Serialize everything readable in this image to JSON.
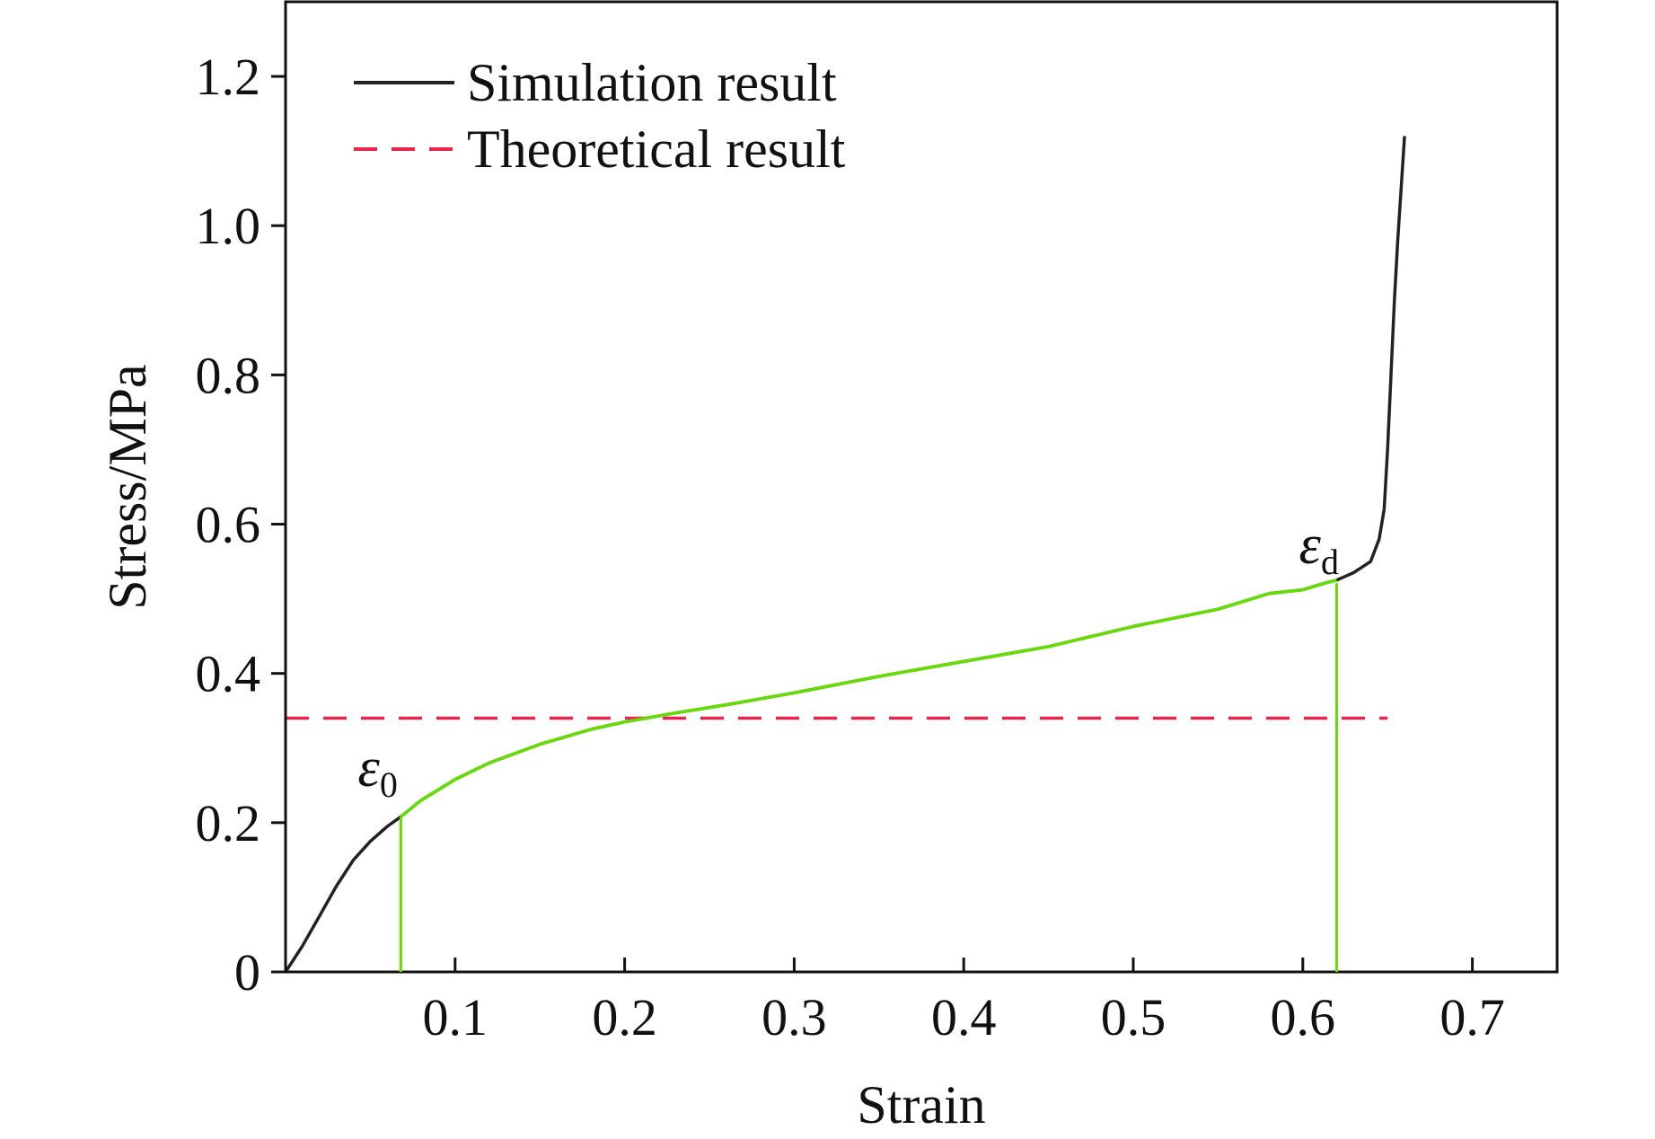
{
  "chart_data": {
    "type": "line",
    "xlabel": "Strain",
    "ylabel": "Stress/MPa",
    "xlim": [
      0,
      0.75
    ],
    "ylim": [
      0,
      1.3
    ],
    "xticks": [
      0.1,
      0.2,
      0.3,
      0.4,
      0.5,
      0.6,
      0.7
    ],
    "xtick_labels": [
      "0.1",
      "0.2",
      "0.3",
      "0.4",
      "0.5",
      "0.6",
      "0.7"
    ],
    "yticks": [
      0,
      0.2,
      0.4,
      0.6,
      0.8,
      1.0,
      1.2
    ],
    "ytick_labels": [
      "0",
      "0.2",
      "0.4",
      "0.6",
      "0.8",
      "1.0",
      "1.2"
    ],
    "legend_position": "top-left",
    "series": [
      {
        "name": "Simulation result",
        "color": "#222222",
        "style": "solid",
        "x": [
          0,
          0.01,
          0.02,
          0.03,
          0.04,
          0.05,
          0.06,
          0.068,
          0.08,
          0.1,
          0.12,
          0.15,
          0.18,
          0.2,
          0.23,
          0.26,
          0.3,
          0.35,
          0.4,
          0.45,
          0.5,
          0.55,
          0.58,
          0.6,
          0.613,
          0.62,
          0.63,
          0.64,
          0.645,
          0.648,
          0.65,
          0.652,
          0.654,
          0.656,
          0.658,
          0.66
        ],
        "y": [
          0,
          0.035,
          0.075,
          0.115,
          0.15,
          0.175,
          0.195,
          0.208,
          0.23,
          0.258,
          0.28,
          0.305,
          0.325,
          0.335,
          0.347,
          0.358,
          0.374,
          0.396,
          0.416,
          0.436,
          0.463,
          0.486,
          0.507,
          0.512,
          0.521,
          0.525,
          0.535,
          0.55,
          0.58,
          0.62,
          0.7,
          0.8,
          0.9,
          0.98,
          1.05,
          1.12
        ]
      },
      {
        "name": "Theoretical result",
        "color": "#e8254a",
        "style": "dashed",
        "x": [
          0,
          0.65
        ],
        "y": [
          0.34,
          0.34
        ]
      }
    ],
    "highlight": {
      "color": "#66dd00",
      "x_range": [
        0.068,
        0.62
      ],
      "markers": [
        {
          "x": 0.068,
          "y": 0.208,
          "symbol": "ε",
          "subscript": "0"
        },
        {
          "x": 0.62,
          "y": 0.521,
          "symbol": "ε",
          "subscript": "d"
        }
      ]
    }
  }
}
